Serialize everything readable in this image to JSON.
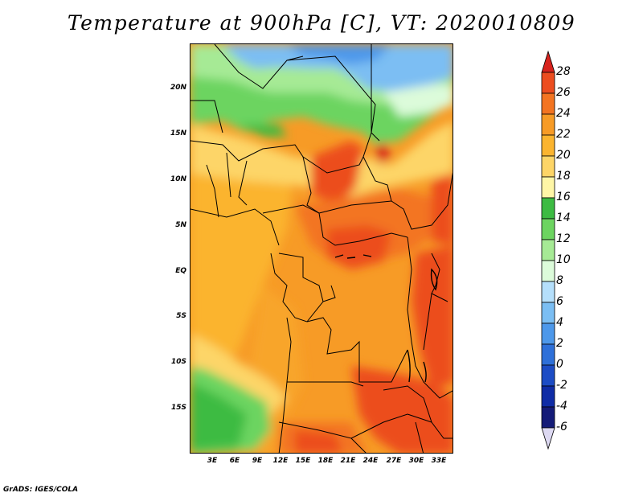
{
  "title": "Temperature at 900hPa [C], VT: 2020010809",
  "footer": "GrADS: IGES/COLA",
  "lat_labels": [
    "20N",
    "15N",
    "10N",
    "5N",
    "EQ",
    "5S",
    "10S",
    "15S"
  ],
  "lon_labels": [
    "3E",
    "6E",
    "9E",
    "12E",
    "15E",
    "18E",
    "21E",
    "24E",
    "27E",
    "30E",
    "33E"
  ],
  "colorbar": {
    "levels": [
      "28",
      "26",
      "24",
      "22",
      "20",
      "18",
      "16",
      "14",
      "12",
      "10",
      "8",
      "6",
      "4",
      "2",
      "0",
      "-2",
      "-4",
      "-6"
    ],
    "colors": [
      "#d7231d",
      "#ec4d1f",
      "#f37421",
      "#f79b26",
      "#fbb42f",
      "#fdd567",
      "#fef6a6",
      "#3cbb42",
      "#6cd460",
      "#a6ea95",
      "#dcfbda",
      "#b5dffb",
      "#7bbef3",
      "#4d98ea",
      "#2e70d9",
      "#1c4cc5",
      "#0f2ca6",
      "#141b78",
      "#ddd9f2"
    ]
  }
}
